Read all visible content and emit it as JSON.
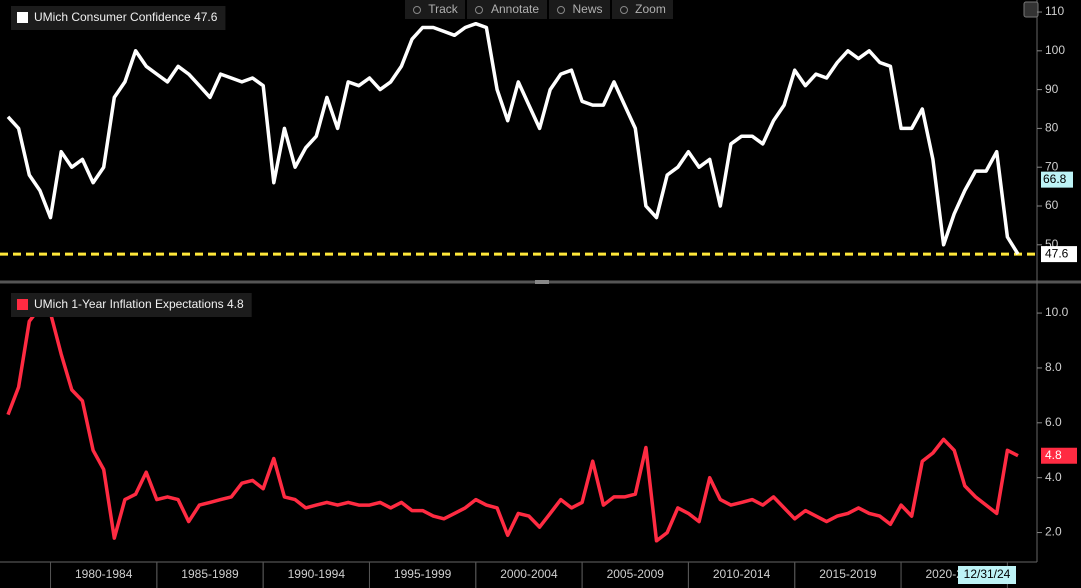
{
  "toolbar": [
    "Track",
    "Annotate",
    "News",
    "Zoom"
  ],
  "chart_data": [
    {
      "type": "line",
      "categories": [
        null,
        null,
        null,
        null,
        null,
        null,
        null,
        null,
        null,
        "1980-1984",
        null,
        null,
        null,
        null,
        null,
        null,
        null,
        null,
        null,
        "1985-1989",
        null,
        null,
        null,
        null,
        null,
        null,
        null,
        null,
        null,
        "1990-1994",
        null,
        null,
        null,
        null,
        null,
        null,
        null,
        null,
        null,
        "1995-1999",
        null,
        null,
        null,
        null,
        null,
        null,
        null,
        null,
        null,
        "2000-2004",
        null,
        null,
        null,
        null,
        null,
        null,
        null,
        null,
        null,
        "2005-2009",
        null,
        null,
        null,
        null,
        null,
        null,
        null,
        null,
        null,
        "2010-2014",
        null,
        null,
        null,
        null,
        null,
        null,
        null,
        null,
        null,
        "2015-2019",
        null,
        null,
        null,
        null,
        null,
        null,
        null,
        null,
        null,
        "2020-2024",
        null,
        null,
        null,
        null,
        null,
        null
      ],
      "series": [
        {
          "name": "UMich Consumer Confidence",
          "color": "#ffffff",
          "values": [
            83,
            80,
            68,
            64,
            57,
            74,
            70,
            72,
            66,
            70,
            88,
            92,
            100,
            96,
            94,
            92,
            96,
            94,
            91,
            88,
            94,
            93,
            92,
            93,
            91,
            66,
            80,
            70,
            75,
            78,
            88,
            80,
            92,
            91,
            93,
            90,
            92,
            96,
            103,
            106,
            106,
            105,
            104,
            106,
            107,
            106,
            90,
            82,
            92,
            86,
            80,
            90,
            94,
            95,
            87,
            86,
            86,
            92,
            86,
            80,
            60,
            57,
            68,
            70,
            74,
            70,
            72,
            60,
            76,
            78,
            78,
            76,
            82,
            86,
            95,
            91,
            94,
            93,
            97,
            100,
            98,
            100,
            97,
            96,
            80,
            80,
            85,
            72,
            50,
            58,
            64,
            69,
            69,
            74,
            52,
            47.6
          ]
        }
      ],
      "ylim": [
        41.7,
        113.1
      ],
      "yticks": [
        50,
        60,
        70,
        80,
        90,
        100,
        110
      ],
      "reference_line_color": "#ffe83a",
      "cursor_value": 66.8
    },
    {
      "type": "line",
      "categories": [
        null,
        null,
        null,
        null,
        null,
        null,
        null,
        null,
        null,
        "1980-1984",
        null,
        null,
        null,
        null,
        null,
        null,
        null,
        null,
        null,
        "1985-1989",
        null,
        null,
        null,
        null,
        null,
        null,
        null,
        null,
        null,
        "1990-1994",
        null,
        null,
        null,
        null,
        null,
        null,
        null,
        null,
        null,
        "1995-1999",
        null,
        null,
        null,
        null,
        null,
        null,
        null,
        null,
        null,
        "2000-2004",
        null,
        null,
        null,
        null,
        null,
        null,
        null,
        null,
        null,
        "2005-2009",
        null,
        null,
        null,
        null,
        null,
        null,
        null,
        null,
        null,
        "2010-2014",
        null,
        null,
        null,
        null,
        null,
        null,
        null,
        null,
        null,
        "2015-2019",
        null,
        null,
        null,
        null,
        null,
        null,
        null,
        null,
        null,
        "2020-2024",
        null,
        null,
        null,
        null,
        null,
        null
      ],
      "series": [
        {
          "name": "UMich 1-Year Inflation Expectations",
          "color": "#ff2b42",
          "values": [
            6.3,
            7.3,
            9.7,
            10.2,
            10.0,
            8.5,
            7.2,
            6.8,
            5.0,
            4.3,
            1.8,
            3.2,
            3.4,
            4.2,
            3.2,
            3.3,
            3.2,
            2.4,
            3.0,
            3.1,
            3.2,
            3.3,
            3.8,
            3.9,
            3.6,
            4.7,
            3.3,
            3.2,
            2.9,
            3.0,
            3.1,
            3.0,
            3.1,
            3.0,
            3.0,
            3.1,
            2.9,
            3.1,
            2.8,
            2.8,
            2.6,
            2.5,
            2.7,
            2.9,
            3.2,
            3.0,
            2.9,
            1.9,
            2.7,
            2.6,
            2.2,
            2.7,
            3.2,
            2.9,
            3.1,
            4.6,
            3.0,
            3.3,
            3.3,
            3.4,
            5.1,
            1.7,
            2.0,
            2.9,
            2.7,
            2.4,
            4.0,
            3.2,
            3.0,
            3.1,
            3.2,
            3.0,
            3.3,
            2.9,
            2.5,
            2.8,
            2.6,
            2.4,
            2.6,
            2.7,
            2.9,
            2.7,
            2.6,
            2.3,
            3.0,
            2.6,
            4.6,
            4.9,
            5.4,
            5.0,
            3.7,
            3.3,
            3.0,
            2.7,
            5.0,
            4.8
          ]
        }
      ],
      "ylim": [
        1.0,
        10.95
      ],
      "yticks": [
        {
          "value": 2,
          "label": "2.0"
        },
        {
          "value": 4,
          "label": "4.0"
        },
        {
          "value": 6,
          "label": "6.0"
        },
        {
          "value": 8,
          "label": "8.0"
        },
        {
          "value": 10,
          "label": "10.0"
        }
      ],
      "cursor_date": "12/31/24"
    }
  ]
}
